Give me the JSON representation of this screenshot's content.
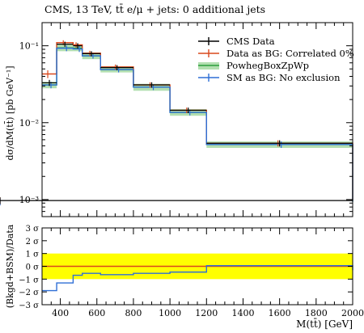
{
  "chart_data": [
    {
      "type": "line",
      "title": "CMS, 13 TeV, tt̄ e/μ + jets: 0 additional jets",
      "ylabel": "dσ/dM(tt̄) [pb GeV⁻¹]",
      "xlabel": "",
      "y_scale": "log",
      "ylim": [
        0.0006,
        0.2
      ],
      "xlim": [
        300,
        2000
      ],
      "bin_edges": [
        300,
        380,
        470,
        520,
        620,
        800,
        1000,
        1200,
        2000
      ],
      "y_ticks": [
        "10⁻³",
        "10⁻²",
        "10⁻¹"
      ],
      "grid": false,
      "legend_position": "top-right",
      "series": [
        {
          "name": "CMS Data",
          "color": "#000000",
          "values": [
            0.033,
            0.105,
            0.1,
            0.079,
            0.052,
            0.031,
            0.0145,
            0.0054,
            0.00097
          ],
          "errors": [
            0.003,
            0.008,
            0.008,
            0.006,
            0.004,
            0.0025,
            0.0012,
            0.0005,
            0.0001
          ]
        },
        {
          "name": "Data as BG: Correlated 0%",
          "color": "#d9481c",
          "values": [
            0.043,
            0.11,
            0.103,
            0.08,
            0.053,
            0.031,
            0.0145,
            0.0054,
            0.00097
          ],
          "errors": [
            0.005,
            0.008,
            0.008,
            0.006,
            0.004,
            0.0025,
            0.0012,
            0.0005,
            0.0001
          ]
        },
        {
          "name": "PowhegBoxZpWp",
          "color": "#2a9d3a",
          "band_color": "#b2dfb0",
          "values": [
            0.031,
            0.094,
            0.093,
            0.074,
            0.049,
            0.029,
            0.0136,
            0.0052,
            0.00094
          ],
          "band_low": [
            0.028,
            0.085,
            0.085,
            0.067,
            0.045,
            0.026,
            0.0123,
            0.0047,
            0.00084
          ],
          "band_high": [
            0.034,
            0.104,
            0.103,
            0.082,
            0.054,
            0.032,
            0.015,
            0.0057,
            0.00104
          ]
        },
        {
          "name": "SM as BG: No exclusion",
          "color": "#2f6fd6",
          "values": [
            0.031,
            0.093,
            0.091,
            0.074,
            0.049,
            0.029,
            0.0136,
            0.0052,
            0.00094
          ],
          "errors": [
            0.003,
            0.008,
            0.008,
            0.006,
            0.004,
            0.0025,
            0.0012,
            0.0005,
            0.0001
          ]
        }
      ]
    },
    {
      "type": "line",
      "title": "",
      "ylabel": "(Bkgd+BSM)/Data",
      "xlabel": "M(tt̄) [GeV]",
      "ylim": [
        -3,
        3
      ],
      "xlim": [
        300,
        2000
      ],
      "y_ticks": [
        "3 σ",
        "2 σ",
        "1 σ",
        "0 σ",
        "−1 σ",
        "−2 σ",
        "−3 σ"
      ],
      "x_ticks": [
        "400",
        "600",
        "800",
        "1000",
        "1200",
        "1400",
        "1600",
        "1800",
        "2000"
      ],
      "x_tick_values": [
        400,
        600,
        800,
        1000,
        1200,
        1400,
        1600,
        1800,
        2000
      ],
      "band": {
        "low": -1,
        "high": 1,
        "color": "#ffff00"
      },
      "series": [
        {
          "name": "",
          "color": "#d9481c",
          "values": [
            0,
            0,
            0,
            0,
            0,
            0,
            0,
            0,
            0
          ]
        },
        {
          "name": "",
          "color": "#2f6fd6",
          "values": [
            -1.9,
            -1.3,
            -0.7,
            -0.55,
            -0.65,
            -0.55,
            -0.45,
            0.05,
            -0.3
          ]
        }
      ]
    }
  ]
}
